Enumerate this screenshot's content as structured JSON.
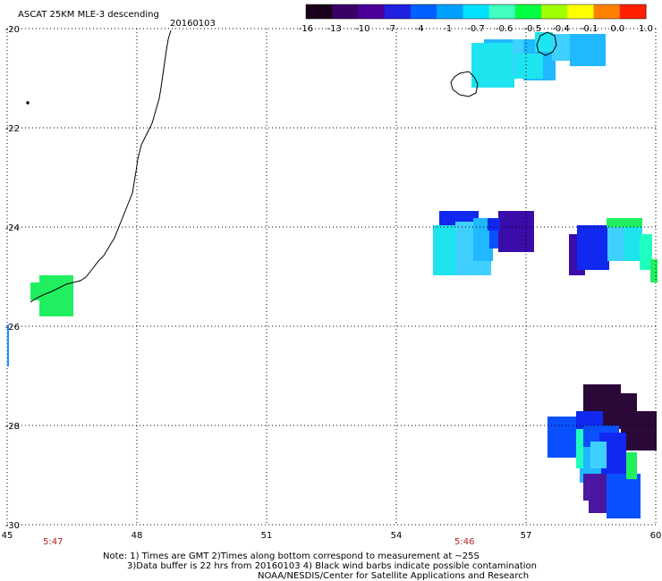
{
  "title": "ASCAT 25KM MLE-3 descending",
  "date": "20160103",
  "colorbar": {
    "labels": [
      "-16",
      "-13",
      "-10",
      "-7",
      "-4",
      "-1",
      "-0.7",
      "-0.6",
      "-0.5",
      "-0.4",
      "-0.1",
      "0.0",
      "1.0"
    ],
    "colors": [
      "#1a001a",
      "#3a0066",
      "#4b0099",
      "#2020e0",
      "#0060ff",
      "#00a0ff",
      "#00e0ff",
      "#40ffc0",
      "#00ff40",
      "#a0ff00",
      "#ffff00",
      "#ff8000",
      "#ff2000"
    ]
  },
  "x_ticks": [
    "45",
    "48",
    "51",
    "54",
    "57",
    "60"
  ],
  "y_ticks": [
    "-20",
    "-22",
    "-24",
    "-26",
    "-28",
    "-30"
  ],
  "times": [
    "5:47",
    "5:46"
  ],
  "notes": [
    "Note: 1) Times are GMT 2)Times along bottom correspond to measurement at ~25S",
    "3)Data buffer is 22 hrs from 20160103 4) Black wind barbs indicate possible contamination",
    "NOAA/NESDIS/Center for Satellite Applications and Research"
  ],
  "data_colors": {
    "cyan": "#1ee4f0",
    "light_cyan": "#40d0ff",
    "sky": "#20b8ff",
    "blue": "#0a50ff",
    "royal": "#1028f0",
    "indigo": "#3a0ca8",
    "violet": "#4a18a0",
    "dark": "#2a0838",
    "green": "#20f060",
    "teal": "#20ffc0"
  }
}
